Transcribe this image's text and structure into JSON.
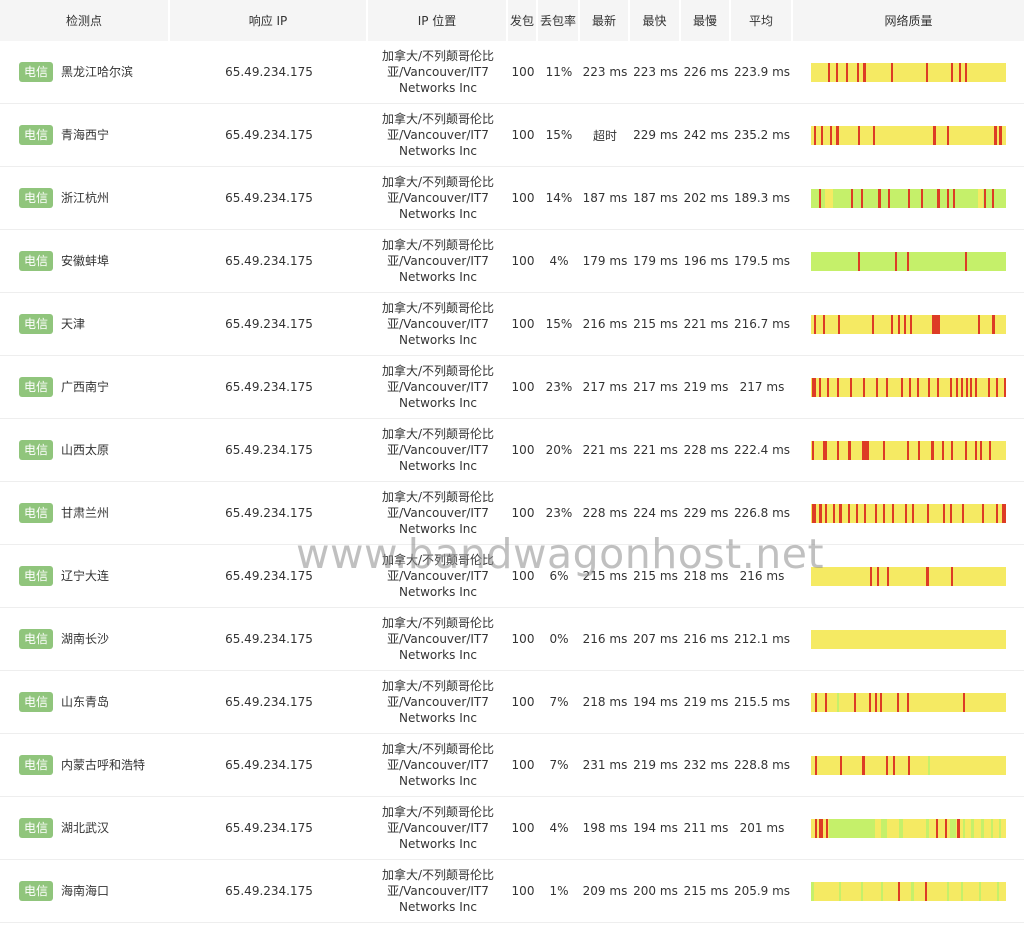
{
  "columns": {
    "point": "检测点",
    "ip": "响应 IP",
    "location": "IP 位置",
    "sent": "发包",
    "loss": "丢包率",
    "latest": "最新",
    "fastest": "最快",
    "slowest": "最慢",
    "average": "平均",
    "quality": "网络质量"
  },
  "colors": {
    "good": "#c5f06a",
    "medium": "#f5ea63",
    "bad": "#dd3c25",
    "badge": "#90c57c"
  },
  "rows": [
    {
      "isp": "电信",
      "city": "黑龙江哈尔滨",
      "ip": "65.49.234.175",
      "location": "加拿大/不列颠哥伦比\n亚/Vancouver/IT7\nNetworks Inc",
      "sent": "100",
      "loss": "11%",
      "latest": "223 ms",
      "fastest": "223 ms",
      "slowest": "226 ms",
      "average": "223.9 ms"
    },
    {
      "isp": "电信",
      "city": "青海西宁",
      "ip": "65.49.234.175",
      "location": "加拿大/不列颠哥伦比\n亚/Vancouver/IT7\nNetworks Inc",
      "sent": "100",
      "loss": "15%",
      "latest": "超时",
      "fastest": "229 ms",
      "slowest": "242 ms",
      "average": "235.2 ms"
    },
    {
      "isp": "电信",
      "city": "浙江杭州",
      "ip": "65.49.234.175",
      "location": "加拿大/不列颠哥伦比\n亚/Vancouver/IT7\nNetworks Inc",
      "sent": "100",
      "loss": "14%",
      "latest": "187 ms",
      "fastest": "187 ms",
      "slowest": "202 ms",
      "average": "189.3 ms"
    },
    {
      "isp": "电信",
      "city": "安徽蚌埠",
      "ip": "65.49.234.175",
      "location": "加拿大/不列颠哥伦比\n亚/Vancouver/IT7\nNetworks Inc",
      "sent": "100",
      "loss": "4%",
      "latest": "179 ms",
      "fastest": "179 ms",
      "slowest": "196 ms",
      "average": "179.5 ms"
    },
    {
      "isp": "电信",
      "city": "天津",
      "ip": "65.49.234.175",
      "location": "加拿大/不列颠哥伦比\n亚/Vancouver/IT7\nNetworks Inc",
      "sent": "100",
      "loss": "15%",
      "latest": "216 ms",
      "fastest": "215 ms",
      "slowest": "221 ms",
      "average": "216.7 ms"
    },
    {
      "isp": "电信",
      "city": "广西南宁",
      "ip": "65.49.234.175",
      "location": "加拿大/不列颠哥伦比\n亚/Vancouver/IT7\nNetworks Inc",
      "sent": "100",
      "loss": "23%",
      "latest": "217 ms",
      "fastest": "217 ms",
      "slowest": "219 ms",
      "average": "217 ms"
    },
    {
      "isp": "电信",
      "city": "山西太原",
      "ip": "65.49.234.175",
      "location": "加拿大/不列颠哥伦比\n亚/Vancouver/IT7\nNetworks Inc",
      "sent": "100",
      "loss": "20%",
      "latest": "221 ms",
      "fastest": "221 ms",
      "slowest": "228 ms",
      "average": "222.4 ms"
    },
    {
      "isp": "电信",
      "city": "甘肃兰州",
      "ip": "65.49.234.175",
      "location": "加拿大/不列颠哥伦比\n亚/Vancouver/IT7\nNetworks Inc",
      "sent": "100",
      "loss": "23%",
      "latest": "228 ms",
      "fastest": "224 ms",
      "slowest": "229 ms",
      "average": "226.8 ms"
    },
    {
      "isp": "电信",
      "city": "辽宁大连",
      "ip": "65.49.234.175",
      "location": "加拿大/不列颠哥伦比\n亚/Vancouver/IT7\nNetworks Inc",
      "sent": "100",
      "loss": "6%",
      "latest": "215 ms",
      "fastest": "215 ms",
      "slowest": "218 ms",
      "average": "216 ms"
    },
    {
      "isp": "电信",
      "city": "湖南长沙",
      "ip": "65.49.234.175",
      "location": "加拿大/不列颠哥伦比\n亚/Vancouver/IT7\nNetworks Inc",
      "sent": "100",
      "loss": "0%",
      "latest": "216 ms",
      "fastest": "207 ms",
      "slowest": "216 ms",
      "average": "212.1 ms"
    },
    {
      "isp": "电信",
      "city": "山东青岛",
      "ip": "65.49.234.175",
      "location": "加拿大/不列颠哥伦比\n亚/Vancouver/IT7\nNetworks Inc",
      "sent": "100",
      "loss": "7%",
      "latest": "218 ms",
      "fastest": "194 ms",
      "slowest": "219 ms",
      "average": "215.5 ms"
    },
    {
      "isp": "电信",
      "city": "内蒙古呼和浩特",
      "ip": "65.49.234.175",
      "location": "加拿大/不列颠哥伦比\n亚/Vancouver/IT7\nNetworks Inc",
      "sent": "100",
      "loss": "7%",
      "latest": "231 ms",
      "fastest": "219 ms",
      "slowest": "232 ms",
      "average": "228.8 ms"
    },
    {
      "isp": "电信",
      "city": "湖北武汉",
      "ip": "65.49.234.175",
      "location": "加拿大/不列颠哥伦比\n亚/Vancouver/IT7\nNetworks Inc",
      "sent": "100",
      "loss": "4%",
      "latest": "198 ms",
      "fastest": "194 ms",
      "slowest": "211 ms",
      "average": "201 ms"
    },
    {
      "isp": "电信",
      "city": "海南海口",
      "ip": "65.49.234.175",
      "location": "加拿大/不列颠哥伦比\n亚/Vancouver/IT7\nNetworks Inc",
      "sent": "100",
      "loss": "1%",
      "latest": "209 ms",
      "fastest": "200 ms",
      "slowest": "215 ms",
      "average": "205.9 ms"
    }
  ],
  "watermark": "www.bandwagonhost.net"
}
